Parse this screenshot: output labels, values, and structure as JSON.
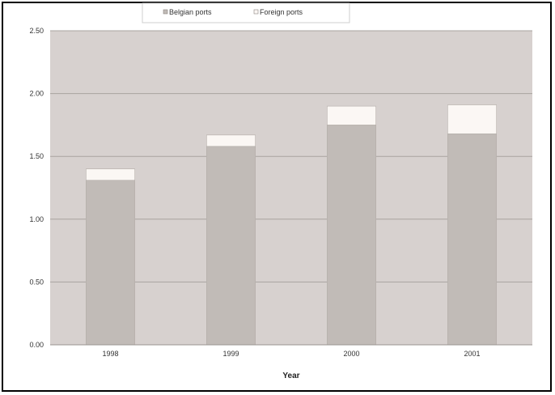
{
  "chart_data": {
    "type": "bar",
    "stacked": true,
    "categories": [
      "1998",
      "1999",
      "2000",
      "2001"
    ],
    "series": [
      {
        "name": "Belgian ports",
        "values": [
          1.31,
          1.58,
          1.75,
          1.68
        ],
        "color": "#c1bbb7"
      },
      {
        "name": "Foreign ports",
        "values": [
          0.09,
          0.09,
          0.15,
          0.23
        ],
        "color": "#fbf7f4"
      }
    ],
    "xlabel": "Year",
    "ylabel": "",
    "ylim": [
      0,
      2.5
    ],
    "yticks": [
      "0.00",
      "0.50",
      "1.00",
      "1.50",
      "2.00",
      "2.50"
    ],
    "grid": true,
    "legend_position": "top-center",
    "plot_background": "#d7d1cf"
  }
}
